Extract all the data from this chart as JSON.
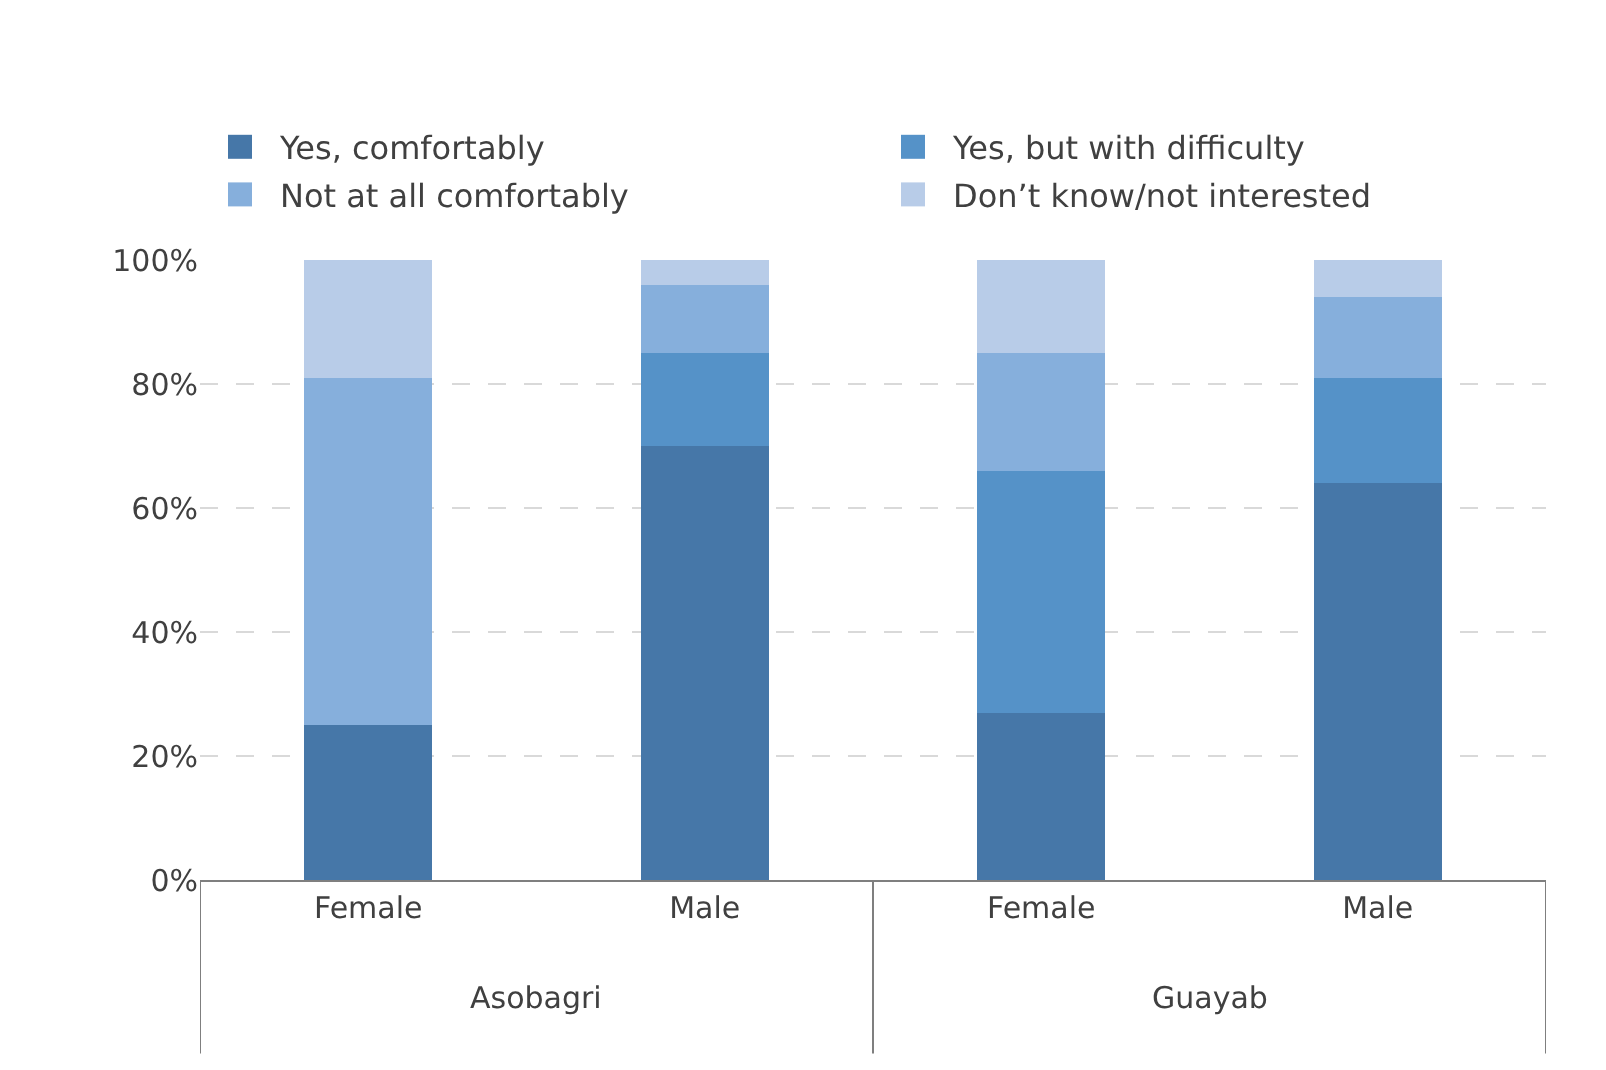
{
  "chart_data": {
    "type": "bar",
    "stacked": true,
    "categories": [
      "Female",
      "Male",
      "Female",
      "Male"
    ],
    "series": [
      {
        "name": "Yes, comfortably",
        "color": "#4677a8",
        "values": [
          25,
          70,
          27,
          64
        ]
      },
      {
        "name": "Yes, but with difficulty",
        "color": "#5592c8",
        "values": [
          0,
          15,
          39,
          17
        ]
      },
      {
        "name": "Not at all comfortably",
        "color": "#86afdc",
        "values": [
          56,
          11,
          19,
          13
        ]
      },
      {
        "name": "Don’t know/not interested",
        "color": "#b8cce8",
        "values": [
          19,
          4,
          15,
          6
        ]
      }
    ],
    "annotations": [
      "Asobagri",
      "Guayab"
    ],
    "ylim": [
      0,
      100
    ],
    "yticks": [
      {
        "value": 0,
        "label": "0%"
      },
      {
        "value": 20,
        "label": "20%"
      },
      {
        "value": 40,
        "label": "40%"
      },
      {
        "value": 60,
        "label": "60%"
      },
      {
        "value": 80,
        "label": "80%"
      },
      {
        "value": 100,
        "label": "100%"
      }
    ],
    "grid": "y",
    "legend": "top"
  }
}
